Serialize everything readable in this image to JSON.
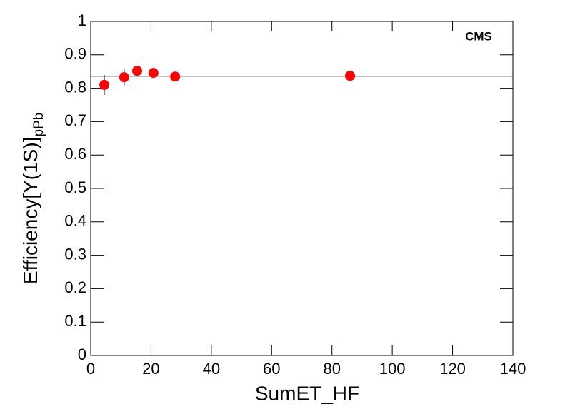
{
  "chart_data": {
    "type": "scatter",
    "x_label": "SumET_HF",
    "y_label": "Efficiency[Υ(1S)]",
    "y_label_sub": "pPb",
    "annotation": "CMS",
    "x": [
      4.5,
      11.1,
      15.4,
      20.8,
      28,
      86
    ],
    "values": [
      0.81,
      0.833,
      0.852,
      0.846,
      0.835,
      0.837
    ],
    "errors": [
      0.03,
      0.025,
      0.015,
      0.015,
      0.012,
      0.01
    ],
    "color": "#ff0000",
    "fit_line": 0.836,
    "xlim": [
      0,
      140
    ],
    "xticks": [
      0,
      20,
      40,
      60,
      80,
      100,
      120,
      140
    ],
    "ylim": [
      0,
      1
    ],
    "yticks": [
      0,
      0.1,
      0.2,
      0.3,
      0.4,
      0.5,
      0.6,
      0.7,
      0.8,
      0.9,
      1
    ]
  }
}
